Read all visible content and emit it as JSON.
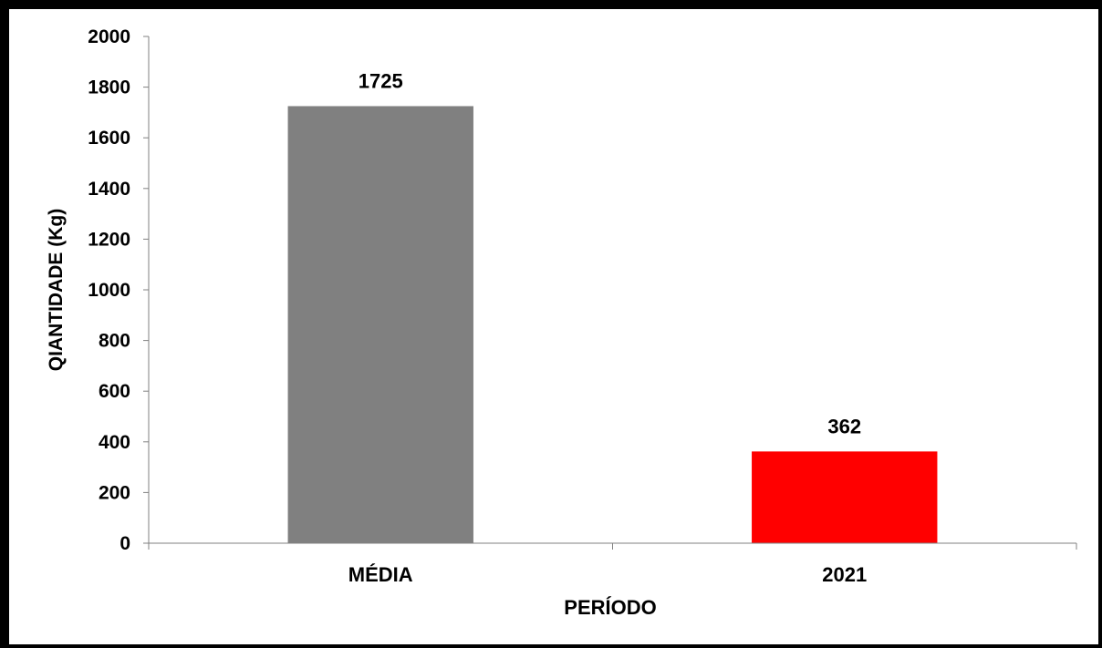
{
  "chart_data": {
    "type": "bar",
    "categories": [
      "MÉDIA",
      "2021"
    ],
    "values": [
      1725,
      362
    ],
    "colors": [
      "#808080",
      "#ff0000"
    ],
    "data_labels": [
      "1725",
      "362"
    ],
    "title": "",
    "xlabel": "PERÍODO",
    "ylabel": "QIANTIDADE (Kg)",
    "ylim": [
      0,
      2000
    ],
    "yticks": [
      0,
      200,
      400,
      600,
      800,
      1000,
      1200,
      1400,
      1600,
      1800,
      2000
    ],
    "grid": false,
    "legend": "none"
  }
}
